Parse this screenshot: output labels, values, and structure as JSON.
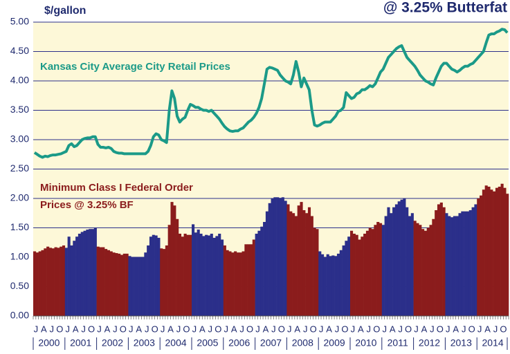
{
  "chart_data": {
    "type": "bar_line",
    "title": "@ 3.25% Butterfat",
    "y_label": "$/gallon",
    "categories": [
      "J",
      null,
      null,
      "A",
      null,
      null,
      "J",
      null,
      null,
      "O",
      null,
      null,
      "J",
      null,
      null,
      "A",
      null,
      null,
      "J",
      null,
      null,
      "O",
      null,
      null,
      "J",
      null,
      null,
      "A",
      null,
      null,
      "J",
      null,
      null,
      "O",
      null,
      null,
      "J",
      null,
      null,
      "A",
      null,
      null,
      "J",
      null,
      null,
      "O",
      null,
      null,
      "J",
      null,
      null,
      "A",
      null,
      null,
      "J",
      null,
      null,
      "O",
      null,
      null,
      "J",
      null,
      null,
      "A",
      null,
      null,
      "J",
      null,
      null,
      "O",
      null,
      null,
      "J",
      null,
      null,
      "A",
      null,
      null,
      "J",
      null,
      null,
      "O",
      null,
      null,
      "J",
      null,
      null,
      "A",
      null,
      null,
      "J",
      null,
      null,
      "O",
      null,
      null,
      "J",
      null,
      null,
      "A",
      null,
      null,
      "J",
      null,
      null,
      "O",
      null,
      null,
      "J",
      null,
      null,
      "A",
      null,
      null,
      "J",
      null,
      null,
      "O",
      null,
      null,
      "J",
      null,
      null,
      "A",
      null,
      null,
      "J",
      null,
      null,
      "O",
      null,
      null,
      "J",
      null,
      null,
      "A",
      null,
      null,
      "J",
      null,
      null,
      "O",
      null,
      null,
      "J",
      null,
      null,
      "A",
      null,
      null,
      "J",
      null,
      null,
      "O",
      null,
      null,
      "J",
      null,
      null,
      "A",
      null,
      null,
      "J",
      null,
      null,
      "O",
      null,
      null,
      "J",
      null,
      null,
      "A",
      null,
      null,
      "J",
      null,
      null,
      "O",
      null,
      null
    ],
    "years": [
      "2000",
      "2001",
      "2002",
      "2003",
      "2004",
      "2005",
      "2006",
      "2007",
      "2008",
      "2009",
      "2010",
      "2011",
      "2012",
      "2013",
      "2014"
    ],
    "ylim": [
      0,
      5
    ],
    "yticks": [
      {
        "value": 0,
        "label": "0.00"
      },
      {
        "value": 0.5,
        "label": "0.50"
      },
      {
        "value": 1,
        "label": "1.00"
      },
      {
        "value": 1.5,
        "label": "1.50"
      },
      {
        "value": 2,
        "label": "2.00"
      },
      {
        "value": 2.5,
        "label": "2.50"
      },
      {
        "value": 3,
        "label": "3.00"
      },
      {
        "value": 3.5,
        "label": "3.50"
      },
      {
        "value": 4,
        "label": "4.00"
      },
      {
        "value": 4.5,
        "label": "4.50"
      },
      {
        "value": 5,
        "label": "5.00"
      }
    ],
    "grid": true,
    "series": [
      {
        "name": "Kansas City Average City Retail Prices",
        "type": "line",
        "color": "#1b9a88",
        "values": [
          2.78,
          2.75,
          2.72,
          2.7,
          2.72,
          2.71,
          2.73,
          2.74,
          2.74,
          2.75,
          2.76,
          2.78,
          2.8,
          2.9,
          2.93,
          2.88,
          2.9,
          2.95,
          3.0,
          3.02,
          3.03,
          3.03,
          3.05,
          3.05,
          2.92,
          2.87,
          2.87,
          2.86,
          2.87,
          2.85,
          2.8,
          2.78,
          2.77,
          2.77,
          2.76,
          2.76,
          2.76,
          2.76,
          2.76,
          2.76,
          2.76,
          2.76,
          2.76,
          2.8,
          2.9,
          3.05,
          3.1,
          3.08,
          3.0,
          2.98,
          2.95,
          3.5,
          3.83,
          3.7,
          3.4,
          3.3,
          3.35,
          3.38,
          3.5,
          3.6,
          3.58,
          3.55,
          3.55,
          3.52,
          3.5,
          3.5,
          3.48,
          3.5,
          3.45,
          3.4,
          3.35,
          3.28,
          3.22,
          3.18,
          3.15,
          3.14,
          3.15,
          3.15,
          3.18,
          3.2,
          3.25,
          3.3,
          3.33,
          3.38,
          3.45,
          3.55,
          3.7,
          3.95,
          4.2,
          4.23,
          4.22,
          4.2,
          4.18,
          4.1,
          4.05,
          4.0,
          3.98,
          3.95,
          4.1,
          4.33,
          4.15,
          3.9,
          4.05,
          3.95,
          3.85,
          3.5,
          3.25,
          3.23,
          3.25,
          3.28,
          3.3,
          3.3,
          3.3,
          3.35,
          3.4,
          3.48,
          3.5,
          3.55,
          3.8,
          3.75,
          3.7,
          3.72,
          3.78,
          3.8,
          3.85,
          3.85,
          3.88,
          3.92,
          3.9,
          3.95,
          4.05,
          4.15,
          4.2,
          4.3,
          4.4,
          4.45,
          4.5,
          4.55,
          4.58,
          4.6,
          4.5,
          4.4,
          4.35,
          4.3,
          4.25,
          4.18,
          4.1,
          4.05,
          4.0,
          3.98,
          3.95,
          3.93,
          4.05,
          4.15,
          4.25,
          4.3,
          4.3,
          4.25,
          4.2,
          4.18,
          4.15,
          4.18,
          4.22,
          4.25,
          4.25,
          4.28,
          4.3,
          4.35,
          4.4,
          4.45,
          4.5,
          4.65,
          4.78,
          4.8,
          4.8,
          4.83,
          4.85,
          4.88,
          4.87,
          4.82
        ]
      },
      {
        "name_lines": [
          "Minimum Class I Federal Order",
          "Prices @ 3.25% BF"
        ],
        "type": "bar",
        "label_color": "#8b1c1c",
        "colors": [
          "#8b1c1c",
          "#2b2f8a"
        ],
        "values": [
          1.1,
          1.08,
          1.1,
          1.12,
          1.15,
          1.18,
          1.16,
          1.15,
          1.17,
          1.16,
          1.18,
          1.2,
          1.16,
          1.35,
          1.2,
          1.28,
          1.35,
          1.4,
          1.43,
          1.45,
          1.47,
          1.48,
          1.48,
          1.5,
          1.18,
          1.17,
          1.17,
          1.14,
          1.12,
          1.1,
          1.08,
          1.07,
          1.06,
          1.04,
          1.06,
          1.06,
          1.02,
          1.0,
          1.0,
          1.0,
          1.0,
          1.0,
          1.08,
          1.2,
          1.35,
          1.38,
          1.37,
          1.33,
          1.15,
          1.14,
          1.2,
          1.55,
          1.94,
          1.88,
          1.65,
          1.4,
          1.35,
          1.4,
          1.38,
          1.38,
          1.56,
          1.42,
          1.47,
          1.4,
          1.36,
          1.38,
          1.37,
          1.4,
          1.33,
          1.36,
          1.4,
          1.3,
          1.2,
          1.12,
          1.1,
          1.08,
          1.1,
          1.08,
          1.08,
          1.1,
          1.22,
          1.22,
          1.22,
          1.3,
          1.4,
          1.45,
          1.52,
          1.6,
          1.78,
          1.92,
          2.0,
          2.02,
          2.02,
          2.01,
          2.02,
          1.96,
          1.9,
          1.78,
          1.75,
          1.7,
          1.88,
          1.94,
          1.8,
          1.75,
          1.85,
          1.7,
          1.5,
          1.48,
          1.1,
          1.05,
          1.0,
          1.05,
          1.02,
          1.03,
          1.02,
          1.06,
          1.12,
          1.2,
          1.28,
          1.35,
          1.45,
          1.4,
          1.38,
          1.3,
          1.35,
          1.4,
          1.45,
          1.5,
          1.48,
          1.55,
          1.6,
          1.58,
          1.55,
          1.7,
          1.85,
          1.75,
          1.85,
          1.9,
          1.95,
          1.98,
          2.0,
          1.85,
          1.7,
          1.75,
          1.62,
          1.58,
          1.55,
          1.48,
          1.45,
          1.5,
          1.55,
          1.65,
          1.8,
          1.9,
          1.93,
          1.85,
          1.75,
          1.7,
          1.68,
          1.7,
          1.7,
          1.75,
          1.78,
          1.78,
          1.78,
          1.8,
          1.85,
          1.9,
          2.0,
          2.05,
          2.15,
          2.22,
          2.2,
          2.15,
          2.12,
          2.18,
          2.2,
          2.25,
          2.18,
          2.08
        ]
      }
    ]
  }
}
